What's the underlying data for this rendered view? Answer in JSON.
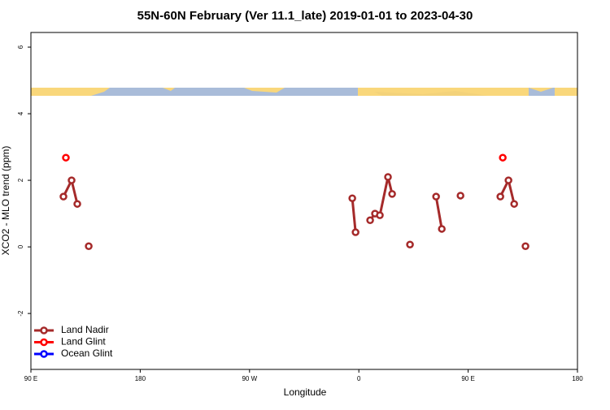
{
  "chart_data": {
    "type": "line",
    "title": "55N-60N February (Ver 11.1_late)   2019-01-01 to 2023-04-30",
    "xlabel": "Longitude",
    "ylabel": "XCO2 - MLO trend (ppm)",
    "xlim": [
      90,
      540
    ],
    "ylim": [
      -3.68,
      6.44
    ],
    "xticks": [
      {
        "value": 90,
        "label": "90 E"
      },
      180,
      {
        "value": 270,
        "label": "90 W"
      },
      {
        "value": 360,
        "label": "0"
      },
      {
        "value": 450,
        "label": "90 E"
      },
      {
        "value": 540,
        "label": "180"
      }
    ],
    "yticks": [
      -2,
      0,
      2,
      4,
      6
    ],
    "legend": "bottom-left",
    "series": [
      {
        "name": "Land Nadir",
        "color": "#a52a2a",
        "x": [
          116.8,
          123.5,
          128.2,
          null,
          137.6,
          null,
          354.6,
          357.3,
          null,
          369.3,
          373.3,
          377.3,
          384.0,
          387.4,
          null,
          402.1,
          null,
          423.6,
          428.3,
          null,
          443.7,
          null,
          476.5,
          483.2,
          487.9,
          null,
          497.2
        ],
        "values": [
          1.51,
          2.0,
          1.29,
          null,
          0.02,
          null,
          1.46,
          0.44,
          null,
          0.8,
          1.0,
          0.95,
          2.1,
          1.59,
          null,
          0.07,
          null,
          1.51,
          0.54,
          null,
          1.54,
          null,
          1.51,
          2.0,
          1.29,
          null,
          0.02
        ]
      },
      {
        "name": "Land Glint",
        "color": "#ff0000",
        "x": [
          118.8,
          null,
          478.5
        ],
        "values": [
          2.68,
          null,
          2.68
        ]
      },
      {
        "name": "Ocean Glint",
        "color": "#0000ff",
        "x": [],
        "values": []
      }
    ]
  }
}
